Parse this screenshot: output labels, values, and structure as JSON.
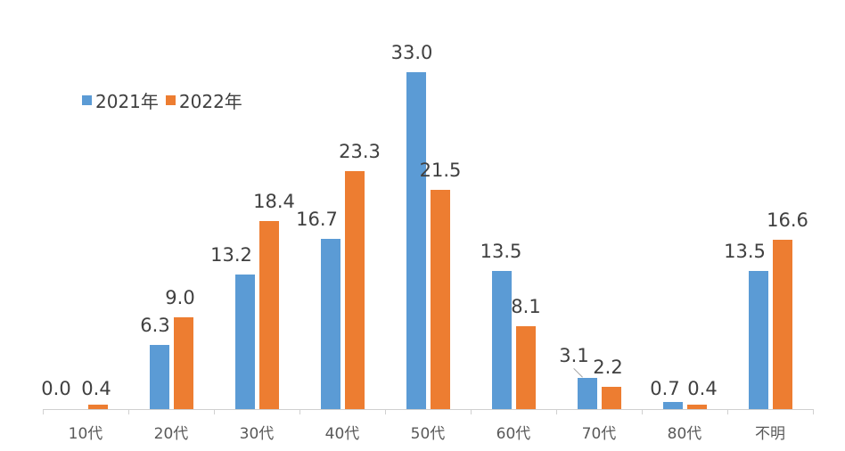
{
  "chart_data": {
    "type": "bar",
    "title": "",
    "xlabel": "",
    "ylabel": "",
    "categories": [
      "10代",
      "20代",
      "30代",
      "40代",
      "50代",
      "60代",
      "70代",
      "80代",
      "不明"
    ],
    "series": [
      {
        "name": "2021年",
        "color": "#5b9bd5",
        "values": [
          0.0,
          6.3,
          13.2,
          16.7,
          33.0,
          13.5,
          3.1,
          0.7,
          13.5
        ]
      },
      {
        "name": "2022年",
        "color": "#ed7d31",
        "values": [
          0.4,
          9.0,
          18.4,
          23.3,
          21.5,
          8.1,
          2.2,
          0.4,
          16.6
        ]
      }
    ],
    "value_labels": {
      "2021年": [
        "0.0",
        "6.3",
        "13.2",
        "16.7",
        "33.0",
        "13.5",
        "3.1",
        "0.7",
        "13.5"
      ],
      "2022年": [
        "0.4",
        "9.0",
        "18.4",
        "23.3",
        "21.5",
        "8.1",
        "2.2",
        "0.4",
        "16.6"
      ]
    },
    "ylim": [
      0,
      35
    ],
    "grid": false,
    "y_axis_visible": false,
    "legend_position": "top-left"
  },
  "legend": {
    "items": [
      {
        "label": "2021年",
        "color": "#5b9bd5"
      },
      {
        "label": "2022年",
        "color": "#ed7d31"
      }
    ]
  }
}
